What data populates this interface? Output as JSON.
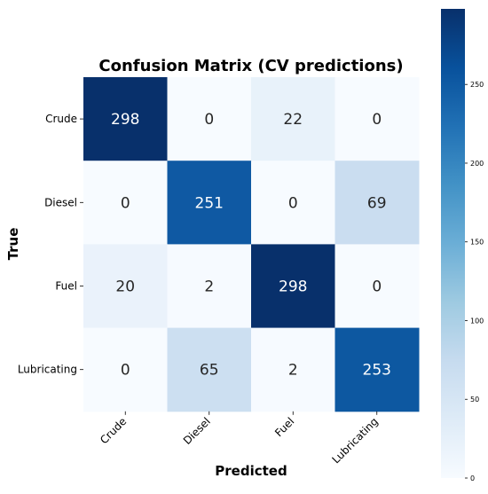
{
  "chart_data": {
    "type": "heatmap",
    "title": "Confusion Matrix (CV predictions)",
    "xlabel": "Predicted",
    "ylabel": "True",
    "row_labels": [
      "Crude",
      "Diesel",
      "Fuel",
      "Lubricating"
    ],
    "col_labels": [
      "Crude",
      "Diesel",
      "Fuel",
      "Lubricating"
    ],
    "values": [
      [
        298,
        0,
        22,
        0
      ],
      [
        0,
        251,
        0,
        69
      ],
      [
        20,
        2,
        298,
        0
      ],
      [
        0,
        65,
        2,
        253
      ]
    ],
    "colormap": "Blues",
    "color_range": [
      0,
      298
    ],
    "colorbar_ticks": [
      0,
      50,
      100,
      150,
      200,
      250
    ],
    "grid": false,
    "colorbar_position": "right"
  }
}
